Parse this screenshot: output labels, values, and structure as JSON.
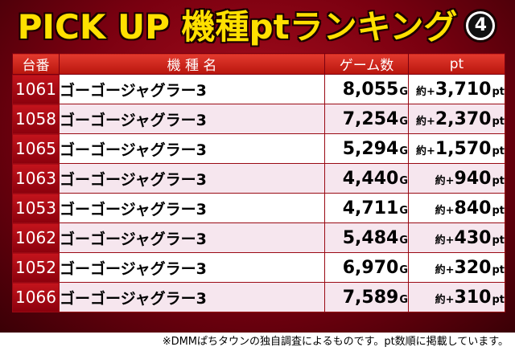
{
  "title": {
    "text": "PICK UP 機種ptランキング",
    "badge": "4"
  },
  "table": {
    "headers": [
      "台番",
      "機 種 名",
      "ゲーム数",
      "pt"
    ],
    "game_unit": "G",
    "pt_prefix": "約+",
    "pt_unit": "pt",
    "rows": [
      {
        "num": "1061",
        "name": "ゴーゴージャグラー3",
        "games": "8,055",
        "pt": "3,710"
      },
      {
        "num": "1058",
        "name": "ゴーゴージャグラー3",
        "games": "7,254",
        "pt": "2,370"
      },
      {
        "num": "1065",
        "name": "ゴーゴージャグラー3",
        "games": "5,294",
        "pt": "1,570"
      },
      {
        "num": "1063",
        "name": "ゴーゴージャグラー3",
        "games": "4,440",
        "pt": "940"
      },
      {
        "num": "1053",
        "name": "ゴーゴージャグラー3",
        "games": "4,711",
        "pt": "840"
      },
      {
        "num": "1062",
        "name": "ゴーゴージャグラー3",
        "games": "5,484",
        "pt": "430"
      },
      {
        "num": "1052",
        "name": "ゴーゴージャグラー3",
        "games": "6,970",
        "pt": "320"
      },
      {
        "num": "1066",
        "name": "ゴーゴージャグラー3",
        "games": "7,589",
        "pt": "310"
      }
    ]
  },
  "footnote": "※DMMぱちタウンの独自調査によるものです。pt数順に掲載しています。",
  "colors": {
    "title": "#ffe000",
    "header": "#c8201a",
    "background": "#8a000c",
    "row_alt": "#f6e6ee"
  }
}
